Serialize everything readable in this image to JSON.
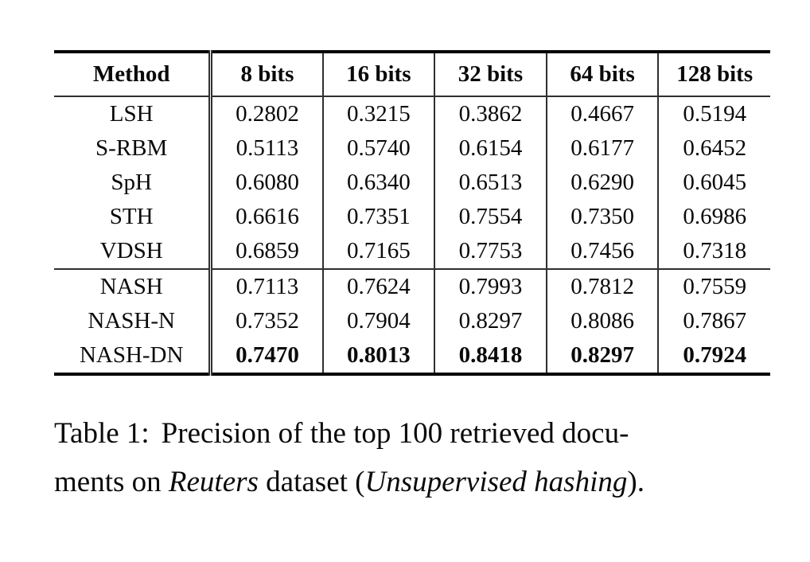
{
  "page": {
    "background_color": "#ffffff",
    "text_color": "#0a0a0a",
    "rule_color_thick": "#000000",
    "rule_color_thin": "#2f2f2f"
  },
  "table": {
    "columns": [
      "Method",
      "8 bits",
      "16 bits",
      "32 bits",
      "64 bits",
      "128 bits"
    ],
    "rows": [
      {
        "method": "LSH",
        "values": [
          "0.2802",
          "0.3215",
          "0.3862",
          "0.4667",
          "0.5194"
        ]
      },
      {
        "method": "S-RBM",
        "values": [
          "0.5113",
          "0.5740",
          "0.6154",
          "0.6177",
          "0.6452"
        ]
      },
      {
        "method": "SpH",
        "values": [
          "0.6080",
          "0.6340",
          "0.6513",
          "0.6290",
          "0.6045"
        ]
      },
      {
        "method": "STH",
        "values": [
          "0.6616",
          "0.7351",
          "0.7554",
          "0.7350",
          "0.6986"
        ]
      },
      {
        "method": "VDSH",
        "values": [
          "0.6859",
          "0.7165",
          "0.7753",
          "0.7456",
          "0.7318"
        ]
      },
      {
        "method": "NASH",
        "values": [
          "0.7113",
          "0.7624",
          "0.7993",
          "0.7812",
          "0.7559"
        ]
      },
      {
        "method": "NASH-N",
        "values": [
          "0.7352",
          "0.7904",
          "0.8297",
          "0.8086",
          "0.7867"
        ]
      },
      {
        "method": "NASH-DN",
        "values": [
          "0.7470",
          "0.8013",
          "0.8418",
          "0.8297",
          "0.7924"
        ]
      }
    ]
  },
  "caption": {
    "line1_label": "Table 1:",
    "line1_rest": "Precision of the top 100 retrieved docu-",
    "line2_pre": "ments on ",
    "line2_italic1": "Reuters",
    "line2_mid": " dataset (",
    "line2_italic2": "Unsupervised hashing",
    "line2_post": ")."
  },
  "chart_data": {
    "type": "table",
    "title": "Table 1: Precision of the top 100 retrieved documents on Reuters dataset (Unsupervised hashing)",
    "columns": [
      "Method",
      "8 bits",
      "16 bits",
      "32 bits",
      "64 bits",
      "128 bits"
    ],
    "rows": [
      [
        "LSH",
        0.2802,
        0.3215,
        0.3862,
        0.4667,
        0.5194
      ],
      [
        "S-RBM",
        0.5113,
        0.574,
        0.6154,
        0.6177,
        0.6452
      ],
      [
        "SpH",
        0.608,
        0.634,
        0.6513,
        0.629,
        0.6045
      ],
      [
        "STH",
        0.6616,
        0.7351,
        0.7554,
        0.735,
        0.6986
      ],
      [
        "VDSH",
        0.6859,
        0.7165,
        0.7753,
        0.7456,
        0.7318
      ],
      [
        "NASH",
        0.7113,
        0.7624,
        0.7993,
        0.7812,
        0.7559
      ],
      [
        "NASH-N",
        0.7352,
        0.7904,
        0.8297,
        0.8086,
        0.7867
      ],
      [
        "NASH-DN",
        0.747,
        0.8013,
        0.8418,
        0.8297,
        0.7924
      ]
    ],
    "notes": "NASH-DN row values are bold (best results); row groups: baselines (LSH..VDSH) and NASH variants (NASH..NASH-DN)"
  }
}
